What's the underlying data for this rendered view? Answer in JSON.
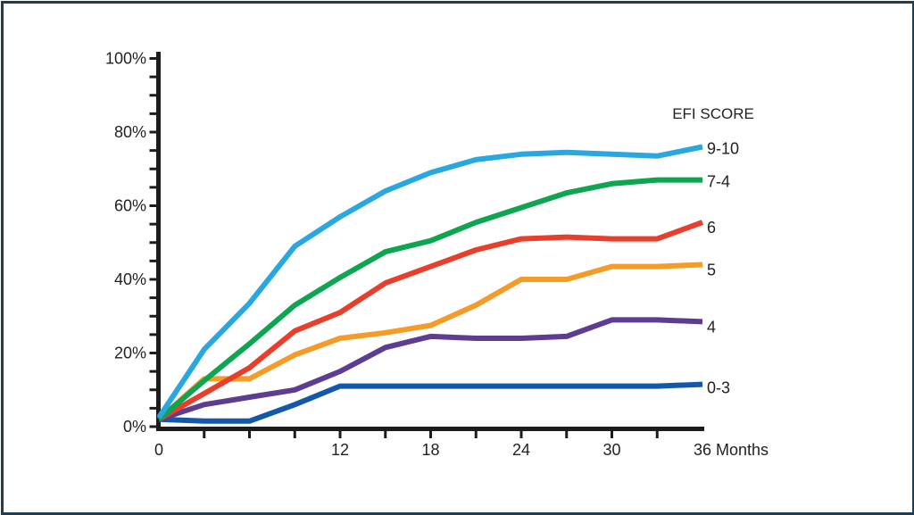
{
  "page": {
    "background_color": "#ffffff",
    "border_color": "#213d53"
  },
  "chart_data": {
    "type": "line",
    "title": "",
    "legend_title": "EFI SCORE",
    "xlabel": "Months",
    "ylabel": "",
    "xlim": [
      0,
      36
    ],
    "ylim": [
      0,
      100
    ],
    "grid": false,
    "legend_position": "right-of-line-ends",
    "axis_color": "#1c1c1c",
    "text_color": "#231f20",
    "x_minor_tick_step_months": 3,
    "y_minor_tick_step_percent": 5,
    "x": [
      0,
      3,
      6,
      9,
      12,
      15,
      18,
      21,
      24,
      27,
      30,
      33,
      36
    ],
    "x_tick_marks": [
      3,
      6,
      9,
      12,
      15,
      18,
      21,
      24,
      27,
      30,
      33
    ],
    "x_tick_labels": [
      {
        "value": 0,
        "label": "0"
      },
      {
        "value": 12,
        "label": "12"
      },
      {
        "value": 18,
        "label": "18"
      },
      {
        "value": 24,
        "label": "24"
      },
      {
        "value": 30,
        "label": "30"
      },
      {
        "value": 36,
        "label": "36 Months"
      }
    ],
    "y_tick_labels": [
      {
        "value": 0,
        "label": "0%"
      },
      {
        "value": 20,
        "label": "20%"
      },
      {
        "value": 40,
        "label": "40%"
      },
      {
        "value": 60,
        "label": "60%"
      },
      {
        "value": 80,
        "label": "80%"
      },
      {
        "value": 100,
        "label": "100%"
      }
    ],
    "series": [
      {
        "name": "9-10",
        "color": "#29a8e0",
        "values": [
          2.5,
          21,
          33.5,
          49,
          57,
          64,
          69,
          72.5,
          74,
          74.5,
          74,
          73.5,
          76
        ]
      },
      {
        "name": "7-4",
        "color": "#0ea551",
        "values": [
          2,
          12.5,
          22.5,
          33,
          40.5,
          47.5,
          50.5,
          55.5,
          59.5,
          63.5,
          66,
          67,
          67
        ]
      },
      {
        "name": "6",
        "color": "#e73f2b",
        "values": [
          2,
          9,
          16,
          26,
          31,
          39,
          43.5,
          48,
          51,
          51.5,
          51,
          51,
          55.5
        ]
      },
      {
        "name": "5",
        "color": "#f59c28",
        "values": [
          2,
          13,
          13,
          19.5,
          24,
          25.5,
          27.5,
          33,
          40,
          40,
          43.5,
          43.5,
          44
        ]
      },
      {
        "name": "4",
        "color": "#5c3d91",
        "values": [
          2,
          6,
          8,
          10,
          15,
          21.5,
          24.5,
          24,
          24,
          24.5,
          29,
          29,
          28.5
        ]
      },
      {
        "name": "0-3",
        "color": "#1459a9",
        "values": [
          2,
          1.5,
          1.5,
          6,
          11,
          11,
          11,
          11,
          11,
          11,
          11,
          11,
          11.5
        ]
      }
    ]
  }
}
